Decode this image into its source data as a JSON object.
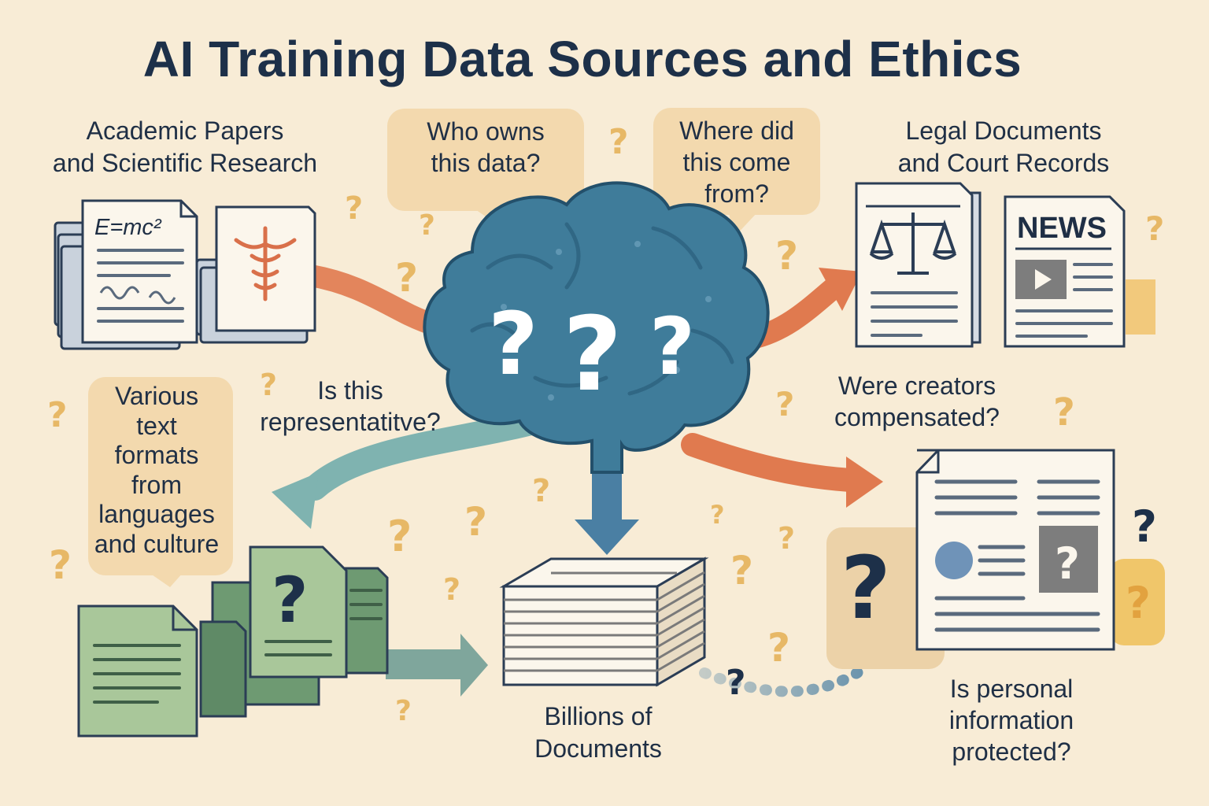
{
  "title": "AI Training Data Sources and Ethics",
  "sources": {
    "academic": "Academic Papers\nand Scientific Research",
    "legal": "Legal Documents\nand Court Records",
    "various": "Various\ntext\nformats\nfrom\nlanguages\nand culture",
    "billions": "Billions of\nDocuments"
  },
  "questions": {
    "who_owns": "Who owns\nthis data?",
    "where_from": "Where did\nthis come\nfrom?",
    "representative": "Is this\nrepresentatitve?",
    "compensated": "Were creators\ncompensated?",
    "personal_info": "Is personal\ninformation\nprotected?"
  },
  "glyphs": {
    "formula": "E=mc²",
    "news": "NEWS",
    "question_mark": "?"
  },
  "colors": {
    "background": "#f8ecd6",
    "brain": "#3f7c9a",
    "arrow_orange": "#e07a4f",
    "arrow_teal": "#7fb3b0",
    "arrow_blue": "#4a7fa3",
    "doc_green": "#8fb78a",
    "bubble": "#f3d9ae",
    "question_gold": "#e7b866"
  }
}
